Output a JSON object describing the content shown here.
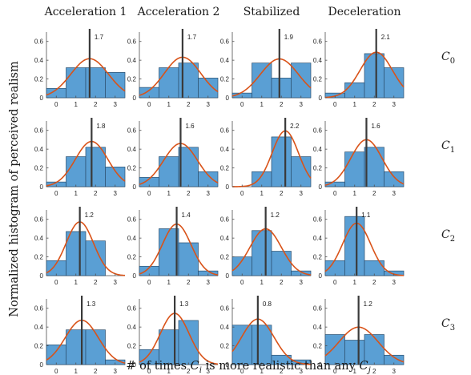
{
  "figure": {
    "ylabel": "Normalized histogram of perceived realism",
    "xlabel_parts": [
      "# of times ",
      "C",
      "i",
      " is more realistic than any ",
      "C",
      "j"
    ],
    "columns": [
      "Acceleration 1",
      "Acceleration 2",
      "Stabilized",
      "Deceleration"
    ],
    "rows": [
      {
        "base": "C",
        "sub": "0"
      },
      {
        "base": "C",
        "sub": "1"
      },
      {
        "base": "C",
        "sub": "2"
      },
      {
        "base": "C",
        "sub": "3"
      }
    ],
    "colors": {
      "bar": "#5a9fd4",
      "bar_edge": "#2b4f6e",
      "curve": "#d95319",
      "mean_line": "#3a3a3a"
    }
  },
  "chart_data": {
    "type": "bar",
    "layout": "4x4 small multiples",
    "categories": [
      0,
      1,
      2,
      3
    ],
    "xticks": [
      "0",
      "1",
      "2",
      "3"
    ],
    "xlim": [
      -0.5,
      3.5
    ],
    "ylim": [
      0,
      0.7
    ],
    "yticks": [
      "0",
      "0.2",
      "0.4",
      "0.6"
    ],
    "overlay": "normal fit curve with vertical line at mean",
    "panels": [
      {
        "row": "C0",
        "col": "Acceleration 1",
        "values": [
          0.1,
          0.32,
          0.32,
          0.27
        ],
        "mean": 1.7,
        "mean_label": "1.7"
      },
      {
        "row": "C0",
        "col": "Acceleration 2",
        "values": [
          0.11,
          0.32,
          0.37,
          0.21
        ],
        "mean": 1.7,
        "mean_label": "1.7"
      },
      {
        "row": "C0",
        "col": "Stabilized",
        "values": [
          0.05,
          0.37,
          0.21,
          0.37
        ],
        "mean": 1.9,
        "mean_label": "1.9"
      },
      {
        "row": "C0",
        "col": "Deceleration",
        "values": [
          0.05,
          0.16,
          0.47,
          0.32
        ],
        "mean": 2.1,
        "mean_label": "2.1"
      },
      {
        "row": "C1",
        "col": "Acceleration 1",
        "values": [
          0.05,
          0.32,
          0.42,
          0.21
        ],
        "mean": 1.8,
        "mean_label": "1.8"
      },
      {
        "row": "C1",
        "col": "Acceleration 2",
        "values": [
          0.1,
          0.32,
          0.42,
          0.16
        ],
        "mean": 1.6,
        "mean_label": "1.6"
      },
      {
        "row": "C1",
        "col": "Stabilized",
        "values": [
          0.0,
          0.16,
          0.53,
          0.32
        ],
        "mean": 2.2,
        "mean_label": "2.2"
      },
      {
        "row": "C1",
        "col": "Deceleration",
        "values": [
          0.05,
          0.37,
          0.42,
          0.16
        ],
        "mean": 1.6,
        "mean_label": "1.6"
      },
      {
        "row": "C2",
        "col": "Acceleration 1",
        "values": [
          0.16,
          0.47,
          0.37,
          0.0
        ],
        "mean": 1.2,
        "mean_label": "1.2"
      },
      {
        "row": "C2",
        "col": "Acceleration 2",
        "values": [
          0.1,
          0.5,
          0.35,
          0.05
        ],
        "mean": 1.4,
        "mean_label": "1.4"
      },
      {
        "row": "C2",
        "col": "Stabilized",
        "values": [
          0.2,
          0.48,
          0.26,
          0.05
        ],
        "mean": 1.2,
        "mean_label": "1.2"
      },
      {
        "row": "C2",
        "col": "Deceleration",
        "values": [
          0.16,
          0.63,
          0.16,
          0.05
        ],
        "mean": 1.1,
        "mean_label": "1.1"
      },
      {
        "row": "C3",
        "col": "Acceleration 1",
        "values": [
          0.21,
          0.37,
          0.37,
          0.05
        ],
        "mean": 1.3,
        "mean_label": "1.3"
      },
      {
        "row": "C3",
        "col": "Acceleration 2",
        "values": [
          0.16,
          0.37,
          0.47,
          0.0
        ],
        "mean": 1.3,
        "mean_label": "1.3"
      },
      {
        "row": "C3",
        "col": "Stabilized",
        "values": [
          0.42,
          0.42,
          0.1,
          0.05
        ],
        "mean": 0.8,
        "mean_label": "0.8"
      },
      {
        "row": "C3",
        "col": "Deceleration",
        "values": [
          0.32,
          0.26,
          0.32,
          0.1
        ],
        "mean": 1.2,
        "mean_label": "1.2"
      }
    ]
  }
}
